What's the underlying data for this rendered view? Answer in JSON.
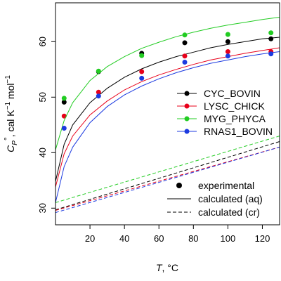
{
  "chart_data": {
    "type": "line",
    "xlabel_prefix": "T",
    "xlabel_suffix": ", °C",
    "ylabel_main": "C",
    "ylabel_sub": "P",
    "ylabel_sup": "°",
    "ylabel_units": ", cal K",
    "ylabel_units_sup1": "−1",
    "ylabel_units_mid": " mol",
    "ylabel_units_sup2": "−1",
    "xlim": [
      0,
      130
    ],
    "ylim": [
      27,
      67
    ],
    "x_ticks": [
      20,
      40,
      60,
      80,
      100,
      120
    ],
    "y_ticks": [
      30,
      40,
      50,
      60
    ],
    "series": [
      {
        "name": "CYC_BOVIN",
        "color": "#000000",
        "experimental": {
          "x": [
            5,
            25,
            50,
            75,
            100,
            125
          ],
          "y": [
            49.1,
            54.6,
            57.9,
            59.8,
            60.0,
            60.5
          ]
        },
        "aq": {
          "x": [
            0,
            5,
            10,
            20,
            30,
            40,
            50,
            60,
            70,
            80,
            90,
            100,
            110,
            120,
            130
          ],
          "y": [
            34.8,
            41.5,
            45.0,
            49.0,
            51.6,
            53.6,
            55.1,
            56.3,
            57.3,
            58.1,
            58.9,
            59.5,
            60.0,
            60.5,
            60.8
          ]
        },
        "cr": {
          "x": [
            0,
            130
          ],
          "y": [
            29.7,
            42.0
          ]
        }
      },
      {
        "name": "LYSC_CHICK",
        "color": "#e8001a",
        "experimental": {
          "x": [
            5,
            25,
            50,
            75,
            100,
            125
          ],
          "y": [
            46.6,
            50.9,
            54.6,
            57.4,
            58.2,
            58.2
          ]
        },
        "aq": {
          "x": [
            0,
            5,
            10,
            20,
            30,
            40,
            50,
            60,
            70,
            80,
            90,
            100,
            110,
            120,
            130
          ],
          "y": [
            33.8,
            39.8,
            43.0,
            46.8,
            49.3,
            51.3,
            52.8,
            54.0,
            55.0,
            55.9,
            56.7,
            57.3,
            57.9,
            58.4,
            58.9
          ]
        },
        "cr": {
          "x": [
            0,
            130
          ],
          "y": [
            29.6,
            41.0
          ]
        }
      },
      {
        "name": "MYG_PHYCA",
        "color": "#22cc22",
        "experimental": {
          "x": [
            5,
            25,
            50,
            75,
            100,
            125
          ],
          "y": [
            49.8,
            54.7,
            57.5,
            61.2,
            61.3,
            61.6
          ]
        },
        "aq": {
          "x": [
            0,
            5,
            10,
            20,
            30,
            40,
            50,
            60,
            70,
            80,
            90,
            100,
            110,
            120,
            130
          ],
          "y": [
            40.5,
            45.8,
            49.0,
            53.0,
            55.5,
            57.3,
            58.8,
            59.9,
            60.9,
            61.7,
            62.4,
            63.0,
            63.5,
            64.0,
            64.4
          ]
        },
        "cr": {
          "x": [
            0,
            130
          ],
          "y": [
            31.0,
            43.0
          ]
        }
      },
      {
        "name": "RNAS1_BOVIN",
        "color": "#1c3ae0",
        "experimental": {
          "x": [
            5,
            25,
            50,
            75,
            100,
            125
          ],
          "y": [
            44.4,
            50.2,
            53.4,
            56.3,
            57.4,
            57.8
          ]
        },
        "aq": {
          "x": [
            0,
            5,
            10,
            20,
            30,
            40,
            50,
            60,
            70,
            80,
            90,
            100,
            110,
            120,
            130
          ],
          "y": [
            31.0,
            37.5,
            41.0,
            45.4,
            48.3,
            50.4,
            52.0,
            53.3,
            54.4,
            55.3,
            56.1,
            56.7,
            57.3,
            57.8,
            58.2
          ]
        },
        "cr": {
          "x": [
            0,
            130
          ],
          "y": [
            29.2,
            41.0
          ]
        }
      }
    ],
    "legend_top": {
      "position": "right",
      "entries": [
        "CYC_BOVIN",
        "LYSC_CHICK",
        "MYG_PHYCA",
        "RNAS1_BOVIN"
      ]
    },
    "legend_bottom": {
      "position": "bottom-right",
      "entries": [
        "experimental",
        "calculated (aq)",
        "calculated (cr)"
      ]
    }
  }
}
